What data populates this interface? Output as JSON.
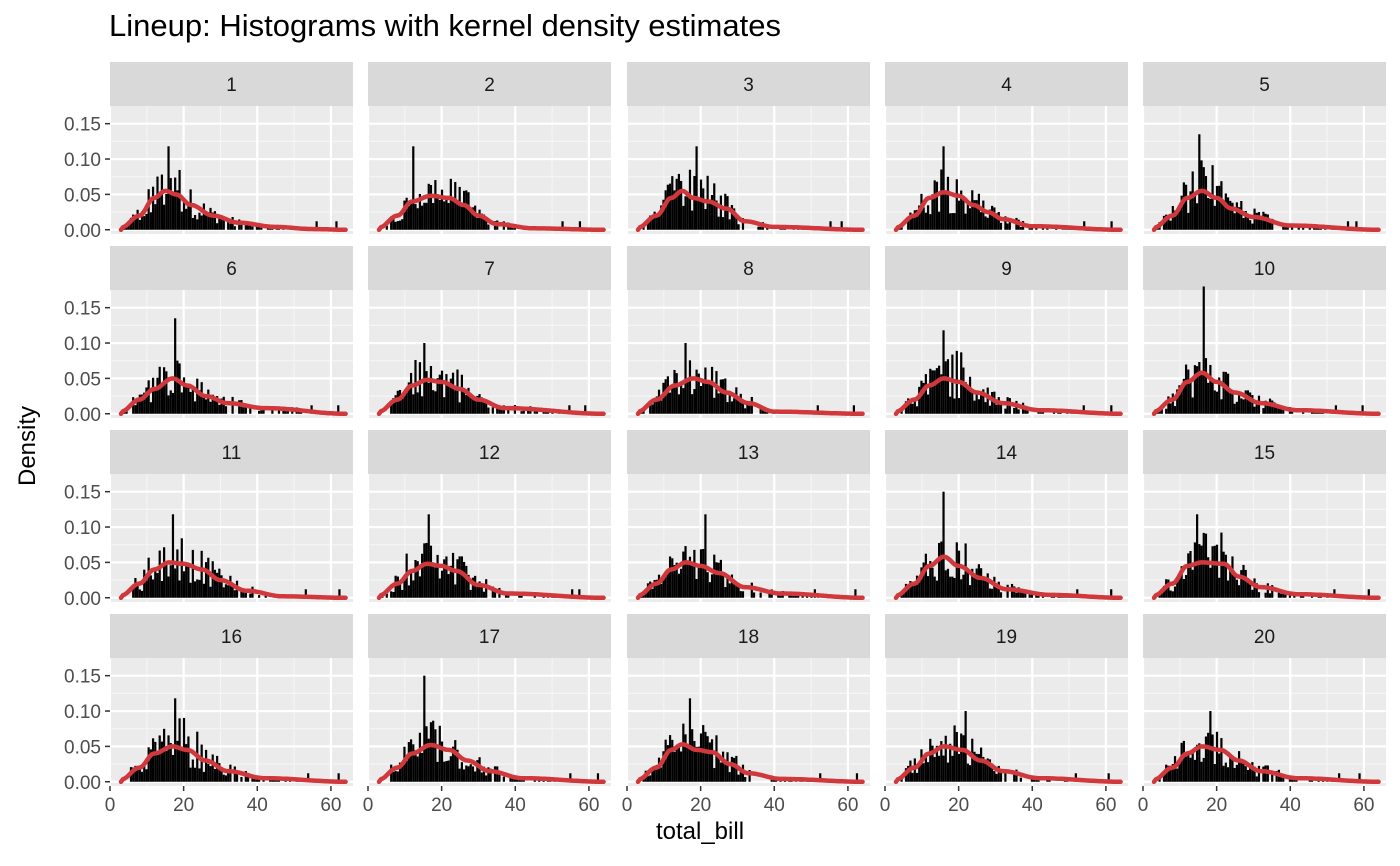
{
  "chart_data": {
    "type": "histogram-facets",
    "title": "Lineup: Histograms with kernel density estimates",
    "xlabel": "total_bill",
    "ylabel": "Density",
    "xlim": [
      0,
      66
    ],
    "ylim": [
      -0.006,
      0.175
    ],
    "x_ticks": [
      0,
      20,
      40,
      60
    ],
    "x_tick_labels": [
      "0",
      "20",
      "40",
      "60"
    ],
    "y_ticks": [
      0,
      0.05,
      0.1,
      0.15
    ],
    "y_tick_labels": [
      "0.00",
      "0.05",
      "0.10",
      "0.15"
    ],
    "facet_rows": 4,
    "facet_cols": 5,
    "grid": true,
    "density_color": "#d1383c",
    "bar_color": "#000000",
    "panel_bg": "#ebebeb",
    "strip_bg": "#d9d9d9",
    "facets": [
      {
        "label": "1",
        "kde": [
          [
            3,
            0.003
          ],
          [
            8,
            0.02
          ],
          [
            12,
            0.045
          ],
          [
            15,
            0.055
          ],
          [
            18,
            0.05
          ],
          [
            22,
            0.035
          ],
          [
            28,
            0.02
          ],
          [
            35,
            0.01
          ],
          [
            45,
            0.004
          ],
          [
            55,
            0.001
          ],
          [
            64,
            0.0
          ]
        ],
        "peak": 0.118
      },
      {
        "label": "2",
        "kde": [
          [
            3,
            0.003
          ],
          [
            8,
            0.02
          ],
          [
            12,
            0.04
          ],
          [
            17,
            0.048
          ],
          [
            22,
            0.045
          ],
          [
            26,
            0.035
          ],
          [
            30,
            0.02
          ],
          [
            35,
            0.008
          ],
          [
            45,
            0.002
          ],
          [
            64,
            0.0
          ]
        ],
        "peak": 0.118
      },
      {
        "label": "3",
        "kde": [
          [
            3,
            0.003
          ],
          [
            8,
            0.02
          ],
          [
            12,
            0.045
          ],
          [
            15,
            0.055
          ],
          [
            18,
            0.045
          ],
          [
            22,
            0.04
          ],
          [
            27,
            0.03
          ],
          [
            32,
            0.012
          ],
          [
            40,
            0.004
          ],
          [
            64,
            0.0
          ]
        ],
        "peak": 0.118
      },
      {
        "label": "4",
        "kde": [
          [
            3,
            0.003
          ],
          [
            8,
            0.02
          ],
          [
            12,
            0.045
          ],
          [
            16,
            0.053
          ],
          [
            20,
            0.048
          ],
          [
            24,
            0.035
          ],
          [
            28,
            0.025
          ],
          [
            32,
            0.015
          ],
          [
            40,
            0.005
          ],
          [
            64,
            0.0
          ]
        ],
        "peak": 0.118
      },
      {
        "label": "5",
        "kde": [
          [
            3,
            0.003
          ],
          [
            8,
            0.02
          ],
          [
            12,
            0.045
          ],
          [
            16,
            0.055
          ],
          [
            20,
            0.045
          ],
          [
            24,
            0.03
          ],
          [
            30,
            0.018
          ],
          [
            40,
            0.006
          ],
          [
            64,
            0.0
          ]
        ],
        "peak": 0.135
      },
      {
        "label": "6",
        "kde": [
          [
            3,
            0.003
          ],
          [
            8,
            0.02
          ],
          [
            12,
            0.035
          ],
          [
            17,
            0.05
          ],
          [
            21,
            0.04
          ],
          [
            26,
            0.025
          ],
          [
            32,
            0.015
          ],
          [
            42,
            0.008
          ],
          [
            64,
            0.0
          ]
        ],
        "peak": 0.135
      },
      {
        "label": "7",
        "kde": [
          [
            3,
            0.003
          ],
          [
            8,
            0.02
          ],
          [
            12,
            0.04
          ],
          [
            16,
            0.048
          ],
          [
            20,
            0.045
          ],
          [
            25,
            0.035
          ],
          [
            30,
            0.02
          ],
          [
            37,
            0.008
          ],
          [
            64,
            0.0
          ]
        ],
        "peak": 0.1
      },
      {
        "label": "8",
        "kde": [
          [
            3,
            0.003
          ],
          [
            8,
            0.02
          ],
          [
            13,
            0.04
          ],
          [
            18,
            0.05
          ],
          [
            22,
            0.045
          ],
          [
            27,
            0.03
          ],
          [
            33,
            0.015
          ],
          [
            40,
            0.003
          ],
          [
            64,
            0.0
          ]
        ],
        "peak": 0.1
      },
      {
        "label": "9",
        "kde": [
          [
            3,
            0.003
          ],
          [
            8,
            0.02
          ],
          [
            12,
            0.04
          ],
          [
            16,
            0.05
          ],
          [
            20,
            0.045
          ],
          [
            25,
            0.03
          ],
          [
            32,
            0.015
          ],
          [
            42,
            0.005
          ],
          [
            64,
            0.0
          ]
        ],
        "peak": 0.118
      },
      {
        "label": "10",
        "kde": [
          [
            3,
            0.003
          ],
          [
            8,
            0.02
          ],
          [
            12,
            0.045
          ],
          [
            16,
            0.058
          ],
          [
            20,
            0.045
          ],
          [
            25,
            0.03
          ],
          [
            32,
            0.015
          ],
          [
            42,
            0.005
          ],
          [
            64,
            0.0
          ]
        ],
        "peak": 0.18
      },
      {
        "label": "11",
        "kde": [
          [
            3,
            0.003
          ],
          [
            8,
            0.02
          ],
          [
            12,
            0.04
          ],
          [
            16,
            0.05
          ],
          [
            20,
            0.048
          ],
          [
            25,
            0.04
          ],
          [
            30,
            0.025
          ],
          [
            37,
            0.01
          ],
          [
            47,
            0.002
          ],
          [
            64,
            0.0
          ]
        ],
        "peak": 0.118
      },
      {
        "label": "12",
        "kde": [
          [
            3,
            0.003
          ],
          [
            8,
            0.02
          ],
          [
            12,
            0.038
          ],
          [
            16,
            0.048
          ],
          [
            20,
            0.045
          ],
          [
            24,
            0.038
          ],
          [
            30,
            0.018
          ],
          [
            38,
            0.006
          ],
          [
            64,
            0.0
          ]
        ],
        "peak": 0.118
      },
      {
        "label": "13",
        "kde": [
          [
            3,
            0.003
          ],
          [
            8,
            0.02
          ],
          [
            12,
            0.04
          ],
          [
            16,
            0.05
          ],
          [
            20,
            0.045
          ],
          [
            25,
            0.035
          ],
          [
            32,
            0.015
          ],
          [
            42,
            0.006
          ],
          [
            64,
            0.0
          ]
        ],
        "peak": 0.118
      },
      {
        "label": "14",
        "kde": [
          [
            3,
            0.003
          ],
          [
            8,
            0.02
          ],
          [
            12,
            0.045
          ],
          [
            16,
            0.058
          ],
          [
            20,
            0.045
          ],
          [
            26,
            0.028
          ],
          [
            33,
            0.012
          ],
          [
            45,
            0.004
          ],
          [
            64,
            0.0
          ]
        ],
        "peak": 0.15
      },
      {
        "label": "15",
        "kde": [
          [
            3,
            0.003
          ],
          [
            8,
            0.02
          ],
          [
            12,
            0.045
          ],
          [
            16,
            0.05
          ],
          [
            22,
            0.048
          ],
          [
            26,
            0.03
          ],
          [
            32,
            0.015
          ],
          [
            42,
            0.005
          ],
          [
            64,
            0.0
          ]
        ],
        "peak": 0.118
      },
      {
        "label": "16",
        "kde": [
          [
            3,
            0.003
          ],
          [
            8,
            0.02
          ],
          [
            12,
            0.04
          ],
          [
            17,
            0.05
          ],
          [
            21,
            0.045
          ],
          [
            26,
            0.03
          ],
          [
            32,
            0.015
          ],
          [
            42,
            0.005
          ],
          [
            64,
            0.0
          ]
        ],
        "peak": 0.118
      },
      {
        "label": "17",
        "kde": [
          [
            3,
            0.003
          ],
          [
            8,
            0.02
          ],
          [
            12,
            0.04
          ],
          [
            17,
            0.052
          ],
          [
            22,
            0.045
          ],
          [
            27,
            0.03
          ],
          [
            33,
            0.015
          ],
          [
            42,
            0.005
          ],
          [
            64,
            0.0
          ]
        ],
        "peak": 0.15
      },
      {
        "label": "18",
        "kde": [
          [
            3,
            0.003
          ],
          [
            8,
            0.02
          ],
          [
            12,
            0.045
          ],
          [
            15,
            0.053
          ],
          [
            19,
            0.045
          ],
          [
            23,
            0.042
          ],
          [
            28,
            0.025
          ],
          [
            33,
            0.012
          ],
          [
            42,
            0.004
          ],
          [
            64,
            0.0
          ]
        ],
        "peak": 0.118
      },
      {
        "label": "19",
        "kde": [
          [
            3,
            0.003
          ],
          [
            8,
            0.02
          ],
          [
            12,
            0.04
          ],
          [
            16,
            0.05
          ],
          [
            21,
            0.045
          ],
          [
            26,
            0.03
          ],
          [
            32,
            0.015
          ],
          [
            42,
            0.005
          ],
          [
            64,
            0.0
          ]
        ],
        "peak": 0.1
      },
      {
        "label": "20",
        "kde": [
          [
            3,
            0.003
          ],
          [
            8,
            0.02
          ],
          [
            12,
            0.04
          ],
          [
            16,
            0.05
          ],
          [
            21,
            0.045
          ],
          [
            26,
            0.03
          ],
          [
            32,
            0.015
          ],
          [
            42,
            0.005
          ],
          [
            64,
            0.0
          ]
        ],
        "peak": 0.1
      }
    ]
  }
}
